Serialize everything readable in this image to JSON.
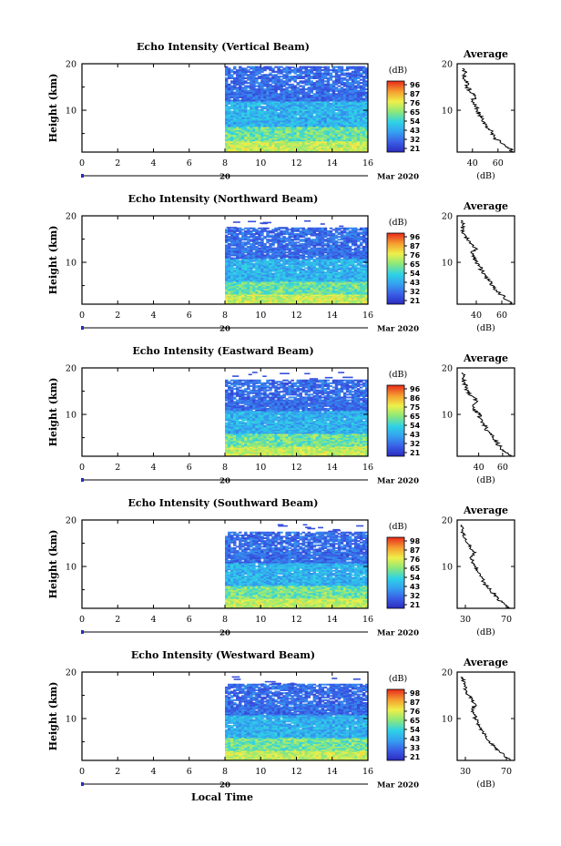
{
  "chart_data": [
    {
      "type": "heatmap",
      "title": "Echo Intensity (Vertical Beam)",
      "ylabel": "Height (km)",
      "xticks": [
        "0",
        "2",
        "4",
        "6",
        "8",
        "10",
        "12",
        "14",
        "16"
      ],
      "yticks": [
        "10",
        "20"
      ],
      "xlim": [
        0,
        16
      ],
      "ylim": [
        1,
        20
      ],
      "data_start_hour": 8,
      "top_km": 19.5,
      "date_day": "20",
      "date_month": "Mar 2020",
      "colorbar": {
        "unit": "(dB)",
        "ticks": [
          "96",
          "87",
          "76",
          "65",
          "54",
          "43",
          "32",
          "21"
        ]
      },
      "profile": {
        "title": "Average",
        "xlabel": "(dB)",
        "xticks": [
          "40",
          "60"
        ],
        "xlim": [
          28,
          73
        ],
        "heights": [
          1,
          2,
          3,
          4,
          5,
          6,
          7,
          8,
          9,
          10,
          11,
          12,
          13,
          14,
          15,
          16,
          17,
          18,
          19
        ],
        "values": [
          72,
          68,
          62,
          58,
          56,
          53,
          51,
          48,
          46,
          44,
          42,
          40,
          42,
          38,
          36,
          35,
          33,
          34,
          32
        ]
      }
    },
    {
      "type": "heatmap",
      "title": "Echo Intensity (Northward Beam)",
      "ylabel": "Height (km)",
      "xticks": [
        "0",
        "2",
        "4",
        "6",
        "8",
        "10",
        "12",
        "14",
        "16"
      ],
      "yticks": [
        "10",
        "20"
      ],
      "xlim": [
        0,
        16
      ],
      "ylim": [
        1,
        20
      ],
      "data_start_hour": 8,
      "top_km": 17.5,
      "date_day": "20",
      "date_month": "Mar 2020",
      "colorbar": {
        "unit": "(dB)",
        "ticks": [
          "96",
          "87",
          "76",
          "65",
          "54",
          "43",
          "32",
          "21"
        ]
      },
      "profile": {
        "title": "Average",
        "xlabel": "(dB)",
        "xticks": [
          "40",
          "60"
        ],
        "xlim": [
          25,
          70
        ],
        "heights": [
          1,
          2,
          3,
          4,
          5,
          6,
          7,
          8,
          9,
          10,
          11,
          12,
          13,
          14,
          15,
          16,
          17,
          18,
          19
        ],
        "values": [
          68,
          63,
          60,
          56,
          53,
          50,
          47,
          45,
          43,
          40,
          38,
          36,
          40,
          36,
          33,
          31,
          30,
          29,
          28
        ]
      }
    },
    {
      "type": "heatmap",
      "title": "Echo Intensity (Eastward Beam)",
      "ylabel": "Height (km)",
      "xticks": [
        "0",
        "2",
        "4",
        "6",
        "8",
        "10",
        "12",
        "14",
        "16"
      ],
      "yticks": [
        "10",
        "20"
      ],
      "xlim": [
        0,
        16
      ],
      "ylim": [
        1,
        20
      ],
      "data_start_hour": 8,
      "top_km": 17.5,
      "date_day": "20",
      "date_month": "Mar 2020",
      "colorbar": {
        "unit": "(dB)",
        "ticks": [
          "96",
          "86",
          "75",
          "65",
          "54",
          "43",
          "32",
          "21"
        ]
      },
      "profile": {
        "title": "Average",
        "xlabel": "(dB)",
        "xticks": [
          "40",
          "60"
        ],
        "xlim": [
          22,
          70
        ],
        "heights": [
          1,
          2,
          3,
          4,
          5,
          6,
          7,
          8,
          9,
          10,
          11,
          12,
          13,
          14,
          15,
          16,
          17,
          18,
          19
        ],
        "values": [
          66,
          62,
          58,
          55,
          52,
          49,
          46,
          44,
          42,
          40,
          37,
          35,
          38,
          34,
          31,
          29,
          28,
          27,
          26
        ]
      }
    },
    {
      "type": "heatmap",
      "title": "Echo Intensity (Southward Beam)",
      "ylabel": "Height (km)",
      "xticks": [
        "0",
        "2",
        "4",
        "6",
        "8",
        "10",
        "12",
        "14",
        "16"
      ],
      "yticks": [
        "10",
        "20"
      ],
      "xlim": [
        0,
        16
      ],
      "ylim": [
        1,
        20
      ],
      "data_start_hour": 8,
      "top_km": 17.5,
      "date_day": "20",
      "date_month": "Mar 2020",
      "colorbar": {
        "unit": "(dB)",
        "ticks": [
          "98",
          "87",
          "76",
          "65",
          "54",
          "43",
          "32",
          "21"
        ]
      },
      "profile": {
        "title": "Average",
        "xlabel": "(dB)",
        "xticks": [
          "30",
          "70"
        ],
        "xlim": [
          22,
          78
        ],
        "heights": [
          1,
          2,
          3,
          4,
          5,
          6,
          7,
          8,
          9,
          10,
          11,
          12,
          13,
          14,
          15,
          16,
          17,
          18,
          19
        ],
        "values": [
          74,
          68,
          62,
          58,
          54,
          50,
          47,
          44,
          42,
          40,
          37,
          35,
          40,
          35,
          32,
          30,
          28,
          27,
          26
        ]
      }
    },
    {
      "type": "heatmap",
      "title": "Echo Intensity (Westward Beam)",
      "ylabel": "Height (km)",
      "xticks": [
        "0",
        "2",
        "4",
        "6",
        "8",
        "10",
        "12",
        "14",
        "16"
      ],
      "yticks": [
        "10",
        "20"
      ],
      "xlim": [
        0,
        16
      ],
      "ylim": [
        1,
        20
      ],
      "data_start_hour": 8,
      "top_km": 17.5,
      "date_day": "20",
      "date_month": "Mar 2020",
      "colorbar": {
        "unit": "(dB)",
        "ticks": [
          "98",
          "87",
          "76",
          "65",
          "54",
          "43",
          "33",
          "21"
        ]
      },
      "profile": {
        "title": "Average",
        "xlabel": "(dB)",
        "xticks": [
          "30",
          "70"
        ],
        "xlim": [
          22,
          78
        ],
        "heights": [
          1,
          2,
          3,
          4,
          5,
          6,
          7,
          8,
          9,
          10,
          11,
          12,
          13,
          14,
          15,
          16,
          17,
          18,
          19
        ],
        "values": [
          74,
          68,
          63,
          58,
          54,
          50,
          47,
          45,
          42,
          40,
          38,
          36,
          40,
          36,
          33,
          31,
          29,
          28,
          27
        ]
      }
    }
  ],
  "xaxis_label": "Local Time"
}
